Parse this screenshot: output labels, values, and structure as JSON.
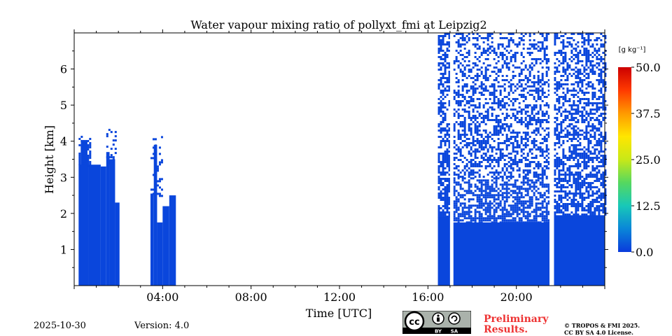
{
  "chart_data": {
    "type": "heatmap",
    "title": "Water vapour mixing ratio of pollyxt_fmi at Leipzig2",
    "xlabel": "Time [UTC]",
    "ylabel": "Height [km]",
    "xlim_hours": [
      0,
      24
    ],
    "ylim_km": [
      0,
      7
    ],
    "x_ticks": [
      {
        "hour": 4,
        "label": "04:00"
      },
      {
        "hour": 8,
        "label": "08:00"
      },
      {
        "hour": 12,
        "label": "12:00"
      },
      {
        "hour": 16,
        "label": "16:00"
      },
      {
        "hour": 20,
        "label": "20:00"
      }
    ],
    "y_ticks": [
      {
        "km": 1,
        "label": "1"
      },
      {
        "km": 2,
        "label": "2"
      },
      {
        "km": 3,
        "label": "3"
      },
      {
        "km": 4,
        "label": "4"
      },
      {
        "km": 5,
        "label": "5"
      },
      {
        "km": 6,
        "label": "6"
      }
    ],
    "colorbar": {
      "unit": "[g kg⁻¹]",
      "min": 0,
      "max": 50,
      "ticks": [
        {
          "value": 50,
          "label": "50.0"
        },
        {
          "value": 37.5,
          "label": "37.5"
        },
        {
          "value": 25,
          "label": "25.0"
        },
        {
          "value": 12.5,
          "label": "12.5"
        },
        {
          "value": 0,
          "label": "0.0"
        }
      ],
      "colors": [
        "#0a3adc",
        "#0a86d8",
        "#18c8b8",
        "#55d860",
        "#c8e818",
        "#ffe600",
        "#ff9a00",
        "#ff3a00",
        "#cc0000"
      ]
    },
    "data_color": "#0a46dc",
    "solid_segments": [
      {
        "t_start": 0.2,
        "t_end": 0.65,
        "top_km": 3.35
      },
      {
        "t_start": 0.3,
        "t_end": 0.6,
        "top_km": 4.0
      },
      {
        "t_start": 0.65,
        "t_end": 1.2,
        "top_km": 3.35
      },
      {
        "t_start": 1.2,
        "t_end": 1.45,
        "top_km": 3.3
      },
      {
        "t_start": 1.45,
        "t_end": 1.6,
        "top_km": 3.7
      },
      {
        "t_start": 1.6,
        "t_end": 1.85,
        "top_km": 3.5
      },
      {
        "t_start": 1.85,
        "t_end": 2.05,
        "top_km": 2.3
      },
      {
        "t_start": 3.45,
        "t_end": 3.6,
        "top_km": 2.55
      },
      {
        "t_start": 3.6,
        "t_end": 3.75,
        "top_km": 3.9
      },
      {
        "t_start": 3.75,
        "t_end": 4.0,
        "top_km": 1.75
      },
      {
        "t_start": 4.0,
        "t_end": 4.3,
        "top_km": 2.2
      },
      {
        "t_start": 4.3,
        "t_end": 4.6,
        "top_km": 2.5
      },
      {
        "t_start": 16.45,
        "t_end": 17.0,
        "top_km": 1.9
      },
      {
        "t_start": 17.15,
        "t_end": 21.5,
        "top_km": 1.75
      },
      {
        "t_start": 21.7,
        "t_end": 24.0,
        "top_km": 1.95
      }
    ],
    "speckle_regions": [
      {
        "t_start": 0.2,
        "t_end": 0.7,
        "h_start": 3.3,
        "h_end": 4.15,
        "density": 0.8
      },
      {
        "t_start": 1.45,
        "t_end": 1.9,
        "h_start": 3.4,
        "h_end": 4.4,
        "density": 0.35
      },
      {
        "t_start": 3.45,
        "t_end": 4.0,
        "h_start": 2.5,
        "h_end": 4.2,
        "density": 0.25
      },
      {
        "t_start": 16.45,
        "t_end": 17.0,
        "h_start": 1.9,
        "h_end": 7.0,
        "density": 0.7
      },
      {
        "t_start": 17.15,
        "t_end": 21.5,
        "h_start": 1.75,
        "h_end": 3.0,
        "density": 0.75
      },
      {
        "t_start": 17.15,
        "t_end": 21.5,
        "h_start": 3.0,
        "h_end": 7.0,
        "density": 0.5
      },
      {
        "t_start": 21.7,
        "t_end": 24.0,
        "h_start": 1.95,
        "h_end": 7.0,
        "density": 0.6
      }
    ],
    "data_gaps": [
      {
        "t_start": 17.0,
        "t_end": 17.15,
        "label": "no data"
      },
      {
        "t_start": 21.5,
        "t_end": 21.7,
        "label": "no data"
      }
    ]
  },
  "footer": {
    "date": "2025-10-30",
    "version": "Version: 4.0",
    "preliminary_line1": "Preliminary",
    "preliminary_line2": "Results.",
    "copyright_line1": "© TROPOS & FMI 2025.",
    "copyright_line2": "CC BY SA 4.0 License.",
    "license_badge_cc": "cc",
    "license_badge_by": "BY",
    "license_badge_sa": "SA"
  }
}
